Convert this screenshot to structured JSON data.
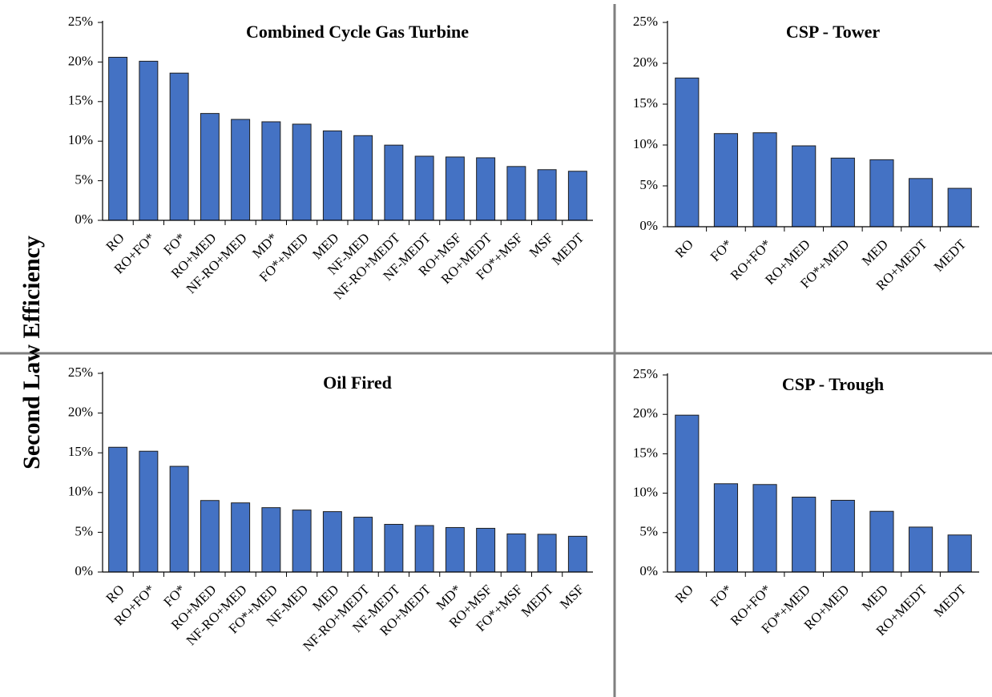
{
  "ylabel": "Second Law Efficiency",
  "chart_data": [
    {
      "type": "bar",
      "title": "Combined Cycle Gas Turbine",
      "color": "#4472c4",
      "grid": false,
      "categories": [
        "RO",
        "RO+FO*",
        "FO*",
        "RO+MED",
        "NF-RO+MED",
        "MD*",
        "FO*+MED",
        "MED",
        "NF-MED",
        "NF-RO+MEDT",
        "NF-MEDT",
        "RO+MSF",
        "RO+MEDT",
        "FO*+MSF",
        "MSF",
        "MEDT"
      ],
      "values": [
        20.6,
        20.1,
        18.6,
        13.5,
        12.75,
        12.45,
        12.15,
        11.3,
        10.7,
        9.5,
        8.1,
        8.0,
        7.9,
        6.8,
        6.4,
        6.2
      ],
      "ylim": [
        0,
        25
      ],
      "yticks": [
        {
          "value": 0,
          "label": "0%"
        },
        {
          "value": 5,
          "label": "5%"
        },
        {
          "value": 10,
          "label": "10%"
        },
        {
          "value": 15,
          "label": "15%"
        },
        {
          "value": 20,
          "label": "20%"
        },
        {
          "value": 25,
          "label": "25%"
        }
      ]
    },
    {
      "type": "bar",
      "title": "CSP - Tower",
      "color": "#4472c4",
      "grid": false,
      "categories": [
        "RO",
        "FO*",
        "RO+FO*",
        "RO+MED",
        "FO*+MED",
        "MED",
        "RO+MEDT",
        "MEDT"
      ],
      "values": [
        18.2,
        11.4,
        11.5,
        9.9,
        8.4,
        8.2,
        5.9,
        4.7
      ],
      "ylim": [
        0,
        25
      ],
      "yticks": [
        {
          "value": 0,
          "label": "0%"
        },
        {
          "value": 5,
          "label": "5%"
        },
        {
          "value": 10,
          "label": "10%"
        },
        {
          "value": 15,
          "label": "15%"
        },
        {
          "value": 20,
          "label": "20%"
        },
        {
          "value": 25,
          "label": "25%"
        }
      ]
    },
    {
      "type": "bar",
      "title": "Oil Fired",
      "color": "#4472c4",
      "grid": false,
      "categories": [
        "RO",
        "RO+FO*",
        "FO*",
        "RO+MED",
        "NF-RO+MED",
        "FO*+MED",
        "NF-MED",
        "MED",
        "NF-RO+MEDT",
        "NF-MEDT",
        "RO+MEDT",
        "MD*",
        "RO+MSF",
        "FO*+MSF",
        "MEDT",
        "MSF"
      ],
      "values": [
        15.7,
        15.2,
        13.3,
        9.0,
        8.7,
        8.1,
        7.8,
        7.6,
        6.9,
        6.0,
        5.85,
        5.6,
        5.5,
        4.8,
        4.75,
        4.5
      ],
      "ylim": [
        0,
        25
      ],
      "yticks": [
        {
          "value": 0,
          "label": "0%"
        },
        {
          "value": 5,
          "label": "5%"
        },
        {
          "value": 10,
          "label": "10%"
        },
        {
          "value": 15,
          "label": "15%"
        },
        {
          "value": 20,
          "label": "20%"
        },
        {
          "value": 25,
          "label": "25%"
        }
      ]
    },
    {
      "type": "bar",
      "title": "CSP - Trough",
      "color": "#4472c4",
      "grid": false,
      "categories": [
        "RO",
        "FO*",
        "RO+FO*",
        "FO*+MED",
        "RO+MED",
        "MED",
        "RO+MEDT",
        "MEDT"
      ],
      "values": [
        19.9,
        11.2,
        11.1,
        9.5,
        9.1,
        7.7,
        5.7,
        4.7
      ],
      "ylim": [
        0,
        25
      ],
      "yticks": [
        {
          "value": 0,
          "label": "0%"
        },
        {
          "value": 5,
          "label": "5%"
        },
        {
          "value": 10,
          "label": "10%"
        },
        {
          "value": 15,
          "label": "15%"
        },
        {
          "value": 20,
          "label": "20%"
        },
        {
          "value": 25,
          "label": "25%"
        }
      ]
    }
  ]
}
